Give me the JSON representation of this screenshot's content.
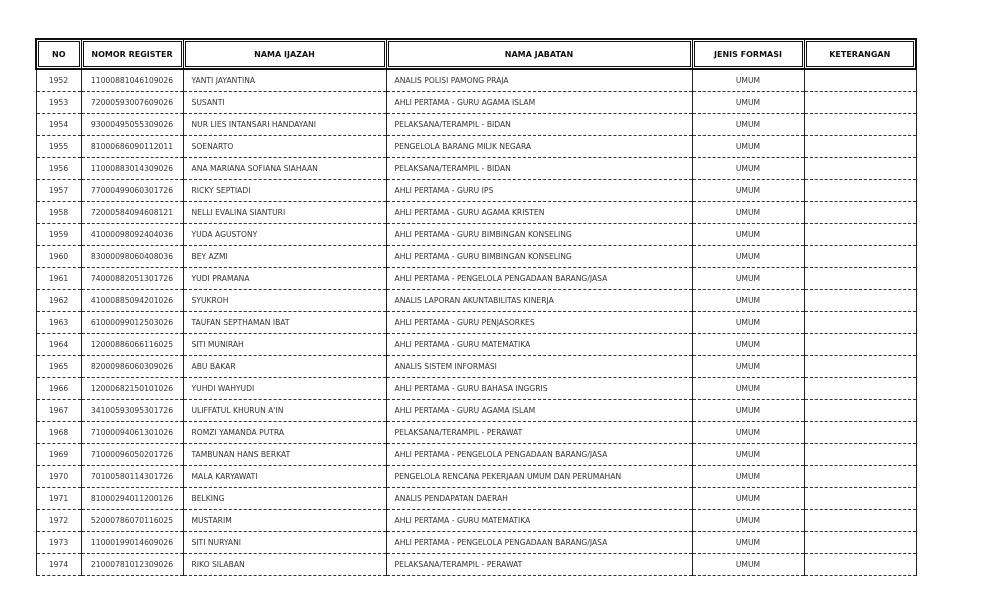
{
  "headers": [
    "NO",
    "NOMOR REGISTER",
    "NAMA IJAZAH",
    "NAMA JABATAN",
    "JENIS FORMASI",
    "KETERANGAN"
  ],
  "rows": [
    [
      "1952",
      "11000881046109026",
      "YANTI JAYANTINA",
      "ANALIS POLISI PAMONG PRAJA",
      "UMUM",
      ""
    ],
    [
      "1953",
      "72000593007609026",
      "SUSANTI",
      "AHLI PERTAMA - GURU AGAMA ISLAM",
      "UMUM",
      ""
    ],
    [
      "1954",
      "93000495055309026",
      "NUR LIES INTANSARI HANDAYANI",
      "PELAKSANA/TERAMPIL - BIDAN",
      "UMUM",
      ""
    ],
    [
      "1955",
      "81000686090112011",
      "SOENARTO",
      "PENGELOLA BARANG MILIK NEGARA",
      "UMUM",
      ""
    ],
    [
      "1956",
      "11000883014309026",
      "ANA MARIANA SOFIANA SIAHAAN",
      "PELAKSANA/TERAMPIL - BIDAN",
      "UMUM",
      ""
    ],
    [
      "1957",
      "77000499060301726",
      "RICKY SEPTIADI",
      "AHLI PERTAMA - GURU IPS",
      "UMUM",
      ""
    ],
    [
      "1958",
      "72000584094608121",
      "NELLI EVALINA SIANTURI",
      "AHLI PERTAMA - GURU AGAMA KRISTEN",
      "UMUM",
      ""
    ],
    [
      "1959",
      "41000098092404036",
      "YUDA AGUSTONY",
      "AHLI PERTAMA - GURU BIMBINGAN KONSELING",
      "UMUM",
      ""
    ],
    [
      "1960",
      "83000098060408036",
      "BEY AZMI",
      "AHLI PERTAMA - GURU BIMBINGAN KONSELING",
      "UMUM",
      ""
    ],
    [
      "1961",
      "74000882051301726",
      "YUDI PRAMANA",
      "AHLI PERTAMA - PENGELOLA PENGADAAN BARANG/JASA",
      "UMUM",
      ""
    ],
    [
      "1962",
      "41000885094201026",
      "SYUKROH",
      "ANALIS LAPORAN AKUNTABILITAS KINERJA",
      "UMUM",
      ""
    ],
    [
      "1963",
      "61000099012503026",
      "TAUFAN SEPTHAMAN IBAT",
      "AHLI PERTAMA - GURU PENJASORKES",
      "UMUM",
      ""
    ],
    [
      "1964",
      "12000886066116025",
      "SITI MUNIRAH",
      "AHLI PERTAMA - GURU MATEMATIKA",
      "UMUM",
      ""
    ],
    [
      "1965",
      "82000986060309026",
      "ABU BAKAR",
      "ANALIS SISTEM INFORMASI",
      "UMUM",
      ""
    ],
    [
      "1966",
      "12000682150101026",
      "YUHDI WAHYUDI",
      "AHLI PERTAMA - GURU BAHASA INGGRIS",
      "UMUM",
      ""
    ],
    [
      "1967",
      "34100593095301726",
      "ULIFFATUL KHURUN A'IN",
      "AHLI PERTAMA - GURU AGAMA ISLAM",
      "UMUM",
      ""
    ],
    [
      "1968",
      "71000094061301026",
      "ROMZI YAMANDA PUTRA",
      "PELAKSANA/TERAMPIL - PERAWAT",
      "UMUM",
      ""
    ],
    [
      "1969",
      "71000096050201726",
      "TAMBUNAN HANS BERKAT",
      "AHLI PERTAMA - PENGELOLA PENGADAAN BARANG/JASA",
      "UMUM",
      ""
    ],
    [
      "1970",
      "70100580114301726",
      "MALA KARYAWATI",
      "PENGELOLA RENCANA PEKERJAAN UMUM DAN PERUMAHAN",
      "UMUM",
      ""
    ],
    [
      "1971",
      "81000294011200126",
      "BELKING",
      "ANALIS PENDAPATAN DAERAH",
      "UMUM",
      ""
    ],
    [
      "1972",
      "52000786070116025",
      "MUSTARIM",
      "AHLI PERTAMA - GURU MATEMATIKA",
      "UMUM",
      ""
    ],
    [
      "1973",
      "11000199014609026",
      "SITI NURYANI",
      "AHLI PERTAMA - PENGELOLA PENGADAAN BARANG/JASA",
      "UMUM",
      ""
    ],
    [
      "1974",
      "21000781012309026",
      "RIKO SILABAN",
      "PELAKSANA/TERAMPIL - PERAWAT",
      "UMUM",
      ""
    ]
  ]
}
